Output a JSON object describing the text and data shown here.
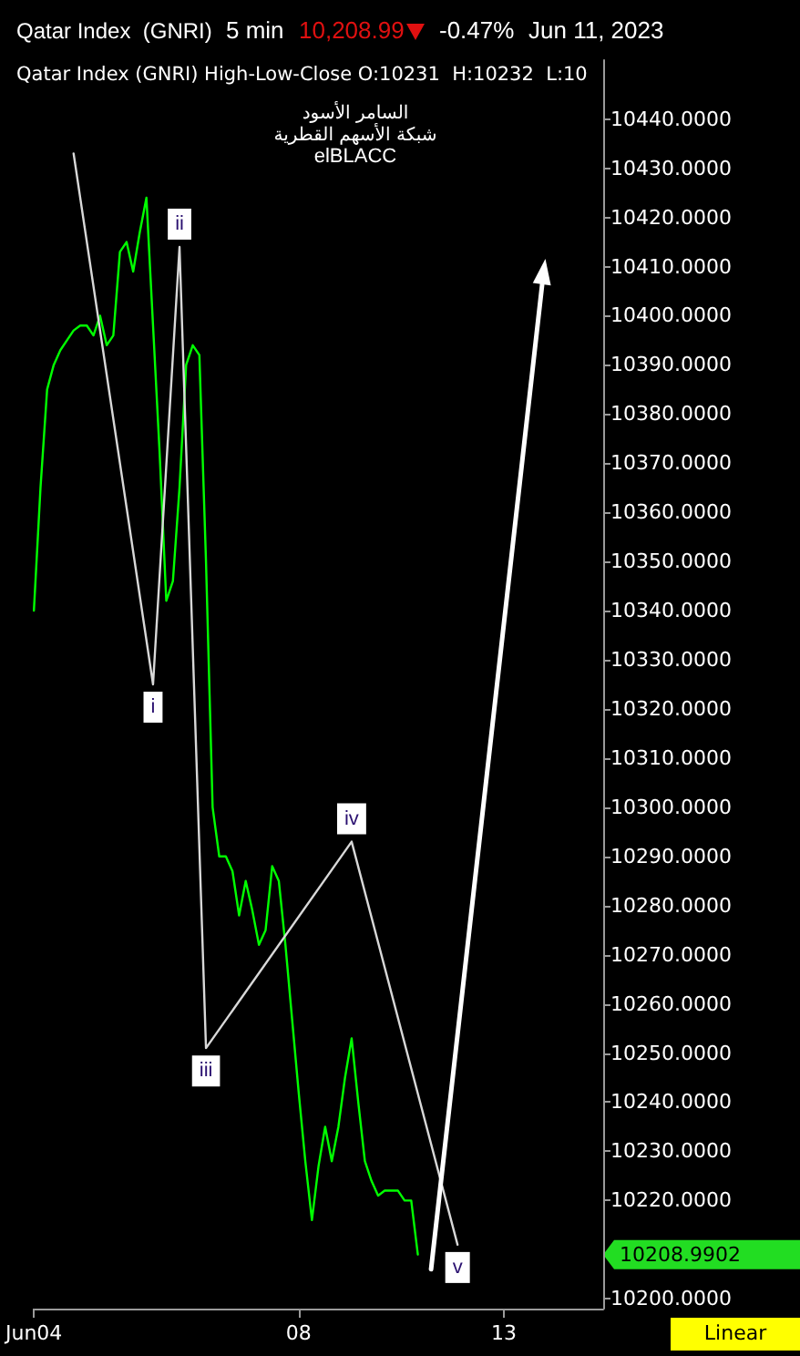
{
  "chart_data": {
    "type": "line",
    "title": "Qatar Index  (GNRI)",
    "subtitle": "Qatar Index (GNRI) High-Low-Close O:10231  H:10232  L:10",
    "annotations": [
      "5 min",
      "10,208.99",
      "-0.47%",
      "Jun 11, 2023",
      "السامر الأسود",
      "شبكة الأسهم القطرية",
      "elBLACC",
      "Linear",
      "10208.9902"
    ],
    "categories": [
      "Jun04",
      null,
      null,
      null,
      null,
      null,
      null,
      null,
      null,
      null,
      null,
      null,
      null,
      null,
      null,
      null,
      null,
      null,
      null,
      null,
      null,
      null,
      null,
      null,
      null,
      null,
      null,
      null,
      null,
      null,
      null,
      null,
      null,
      null,
      null,
      null,
      null,
      null,
      null,
      null,
      "08",
      null,
      null,
      null,
      null,
      null,
      null,
      null,
      null,
      null,
      null,
      null,
      null,
      null,
      null,
      null,
      null,
      null,
      null,
      null,
      null,
      null,
      null,
      null,
      null,
      null,
      null,
      null,
      null,
      null,
      null,
      "13",
      null,
      null,
      null,
      null,
      null,
      null,
      null,
      null,
      null,
      null,
      null,
      null,
      null,
      null,
      null
    ],
    "ylim": [
      10198,
      10452
    ],
    "yticks": [
      {
        "value": 10200,
        "label": "10200.0000"
      },
      {
        "value": 10220,
        "label": "10220.0000"
      },
      {
        "value": 10230,
        "label": "10230.0000"
      },
      {
        "value": 10240,
        "label": "10240.0000"
      },
      {
        "value": 10250,
        "label": "10250.0000"
      },
      {
        "value": 10260,
        "label": "10260.0000"
      },
      {
        "value": 10270,
        "label": "10270.0000"
      },
      {
        "value": 10280,
        "label": "10280.0000"
      },
      {
        "value": 10290,
        "label": "10290.0000"
      },
      {
        "value": 10300,
        "label": "10300.0000"
      },
      {
        "value": 10310,
        "label": "10310.0000"
      },
      {
        "value": 10320,
        "label": "10320.0000"
      },
      {
        "value": 10330,
        "label": "10330.0000"
      },
      {
        "value": 10340,
        "label": "10340.0000"
      },
      {
        "value": 10350,
        "label": "10350.0000"
      },
      {
        "value": 10360,
        "label": "10360.0000"
      },
      {
        "value": 10370,
        "label": "10370.0000"
      },
      {
        "value": 10380,
        "label": "10380.0000"
      },
      {
        "value": 10390,
        "label": "10390.0000"
      },
      {
        "value": 10400,
        "label": "10400.0000"
      },
      {
        "value": 10410,
        "label": "10410.0000"
      },
      {
        "value": 10420,
        "label": "10420.0000"
      },
      {
        "value": 10430,
        "label": "10430.0000"
      },
      {
        "value": 10440,
        "label": "10440.0000"
      }
    ],
    "marker": "none",
    "series": [
      {
        "color": "#00ff00",
        "values": [
          10340,
          10365,
          10385,
          10390,
          10393,
          10395,
          10397,
          10398,
          10398,
          10396,
          10400,
          10394,
          10396,
          10413,
          10415,
          10409,
          10417,
          10424,
          10398,
          10372,
          10342,
          10346,
          10365,
          10390,
          10394,
          10392,
          10350,
          10300,
          10290,
          10290,
          10287,
          10278,
          10285,
          10279,
          10272,
          10275,
          10288,
          10285,
          10272,
          10257,
          10242,
          10228,
          10216,
          10227,
          10235,
          10228,
          10235,
          10245,
          10253,
          10240,
          10228,
          10224,
          10221,
          10222,
          10222,
          10222,
          10220,
          10220,
          10209,
          null,
          null,
          null,
          null,
          null,
          null,
          null,
          null,
          null,
          null,
          null,
          null,
          null,
          null,
          null,
          null,
          null,
          null,
          null,
          null,
          null,
          null,
          null,
          null,
          null,
          null,
          null,
          null
        ]
      },
      {
        "color": "#d8d8d8",
        "values": [
          null,
          null,
          null,
          null,
          null,
          null,
          10433,
          null,
          null,
          null,
          null,
          null,
          null,
          null,
          null,
          null,
          null,
          null,
          10325,
          null,
          null,
          null,
          10414,
          null,
          null,
          null,
          10251,
          null,
          null,
          null,
          null,
          null,
          null,
          null,
          null,
          null,
          null,
          null,
          null,
          null,
          null,
          null,
          null,
          null,
          null,
          null,
          null,
          null,
          10293,
          null,
          null,
          null,
          null,
          null,
          null,
          null,
          null,
          null,
          null,
          null,
          null,
          null,
          null,
          null,
          10211,
          null,
          null,
          null,
          null,
          null,
          null,
          null,
          null,
          null,
          null,
          null,
          null,
          null,
          null,
          null,
          null,
          null,
          null,
          null,
          null,
          null,
          null
        ],
        "value_labels": [
          null,
          null,
          null,
          null,
          null,
          null,
          null,
          null,
          null,
          null,
          null,
          null,
          null,
          null,
          null,
          null,
          null,
          null,
          "i",
          null,
          null,
          null,
          "ii",
          null,
          null,
          null,
          "iii",
          null,
          null,
          null,
          null,
          null,
          null,
          null,
          null,
          null,
          null,
          null,
          null,
          null,
          null,
          null,
          null,
          null,
          null,
          null,
          null,
          null,
          "iv",
          null,
          null,
          null,
          null,
          null,
          null,
          null,
          null,
          null,
          null,
          null,
          null,
          null,
          null,
          null,
          "v",
          null,
          null,
          null,
          null,
          null,
          null,
          null,
          null,
          null,
          null,
          null,
          null,
          null,
          null,
          null,
          null,
          null,
          null,
          null,
          null,
          null,
          null
        ]
      },
      {
        "color": "#ffffff",
        "marker": "triangle",
        "values": [
          null,
          null,
          null,
          null,
          null,
          null,
          null,
          null,
          null,
          null,
          null,
          null,
          null,
          null,
          null,
          null,
          null,
          null,
          null,
          null,
          null,
          null,
          null,
          null,
          null,
          null,
          null,
          null,
          null,
          null,
          null,
          null,
          null,
          null,
          null,
          null,
          null,
          null,
          null,
          null,
          null,
          null,
          null,
          null,
          null,
          null,
          null,
          null,
          null,
          null,
          null,
          null,
          null,
          null,
          null,
          null,
          null,
          null,
          null,
          null,
          10206,
          null,
          null,
          null,
          null,
          null,
          null,
          null,
          null,
          null,
          null,
          null,
          null,
          null,
          null,
          null,
          null,
          10409,
          null,
          null,
          null,
          null,
          null,
          null,
          null,
          null,
          null
        ]
      }
    ]
  }
}
